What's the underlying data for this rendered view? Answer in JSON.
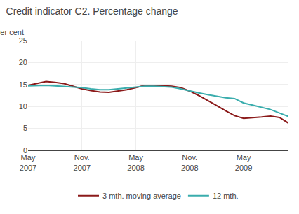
{
  "chart_data": {
    "type": "line",
    "title": "Credit indicator C2. Percentage change",
    "ylabel": "Per cent",
    "categories": [
      "May\n2007",
      null,
      null,
      null,
      null,
      null,
      "Nov.\n2007",
      null,
      null,
      null,
      null,
      null,
      "May\n2008",
      null,
      null,
      null,
      null,
      null,
      "Nov.\n2008",
      null,
      null,
      null,
      null,
      null,
      "May\n2009",
      null,
      null,
      null,
      null,
      null
    ],
    "series": [
      {
        "name": "3 mth. moving average",
        "color": "#8b1a1a",
        "values": [
          14.8,
          15.3,
          15.7,
          15.5,
          15.2,
          14.6,
          14.0,
          13.6,
          13.3,
          13.2,
          13.5,
          13.8,
          14.3,
          14.8,
          14.8,
          14.7,
          14.6,
          14.3,
          13.5,
          12.5,
          11.4,
          10.2,
          9.0,
          7.9,
          7.3,
          7.4,
          7.6,
          7.8,
          7.5,
          6.2
        ]
      },
      {
        "name": "12 mth.",
        "color": "#3aadad",
        "values": [
          14.7,
          14.8,
          14.8,
          14.7,
          14.6,
          14.5,
          14.3,
          14.0,
          13.8,
          13.8,
          14.0,
          14.2,
          14.5,
          14.6,
          14.6,
          14.5,
          14.4,
          14.0,
          13.5,
          13.1,
          12.7,
          12.3,
          12.0,
          11.8,
          10.8,
          10.3,
          9.8,
          9.3,
          8.5,
          7.7
        ]
      }
    ],
    "ylim": [
      0,
      25
    ],
    "yticks": [
      0,
      5,
      10,
      15,
      20,
      25
    ],
    "grid": true,
    "legend": "bottom"
  }
}
